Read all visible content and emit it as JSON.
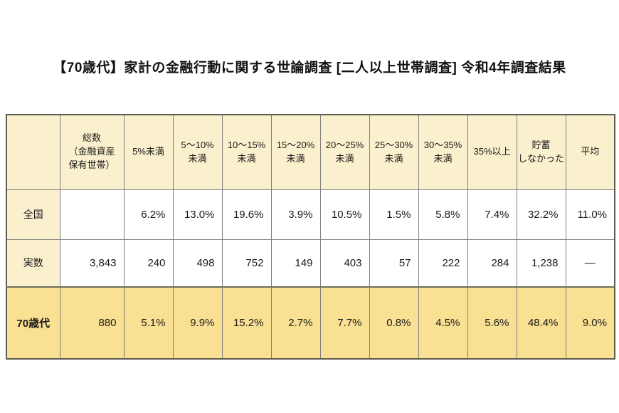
{
  "page": {
    "title": "【70歳代】家計の金融行動に関する世論調査 [二人以上世帯調査]  令和4年調査結果"
  },
  "colors": {
    "header_bg": "#faf0ce",
    "row_label_bg": "#faf0ce",
    "highlight_row_bg": "#f9e093",
    "cell_bg": "#ffffff",
    "outer_border": "#5d5d4e",
    "inner_border": "#7f7f7f",
    "text": "#1a1a1a"
  },
  "table": {
    "columns": [
      "",
      "総数\n（金融資産\n保有世帯）",
      "5%未満",
      "5〜10%\n未満",
      "10〜15%\n未満",
      "15〜20%\n未満",
      "20〜25%\n未満",
      "25〜30%\n未満",
      "30〜35%\n未満",
      "35%以上",
      "貯蓄\nしなかった",
      "平均"
    ],
    "rows": [
      {
        "label": "全国",
        "cells": [
          "",
          "6.2%",
          "13.0%",
          "19.6%",
          "3.9%",
          "10.5%",
          "1.5%",
          "5.8%",
          "7.4%",
          "32.2%",
          "11.0%"
        ]
      },
      {
        "label": "実数",
        "cells": [
          "3,843",
          "240",
          "498",
          "752",
          "149",
          "403",
          "57",
          "222",
          "284",
          "1,238",
          "—"
        ]
      },
      {
        "label": "70歳代",
        "cells": [
          "880",
          "5.1%",
          "9.9%",
          "15.2%",
          "2.7%",
          "7.7%",
          "0.8%",
          "4.5%",
          "5.6%",
          "48.4%",
          "9.0%"
        ]
      }
    ]
  }
}
